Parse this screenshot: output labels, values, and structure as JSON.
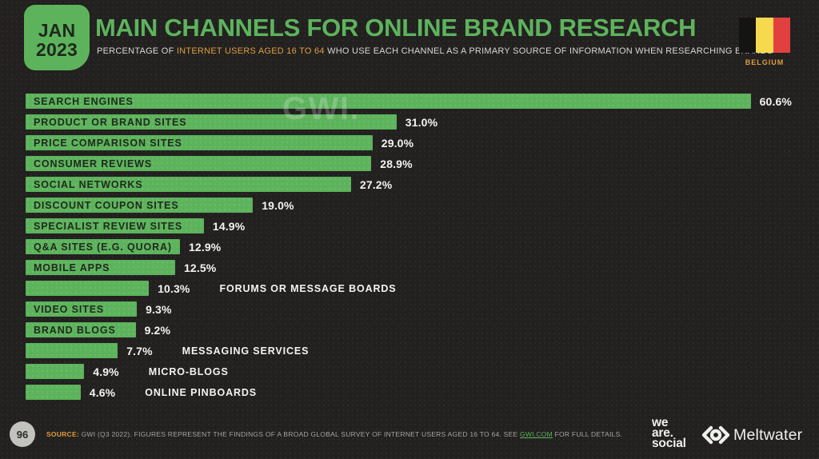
{
  "page": {
    "colors": {
      "background": "#222120",
      "green": "#5cb35c",
      "orange": "#dd9d3f",
      "bar_label_dark": "#202a1e",
      "white_text": "#f3f3f1"
    }
  },
  "header": {
    "date_badge": {
      "line1": "JAN",
      "line2": "2023"
    },
    "title": "MAIN CHANNELS FOR ONLINE BRAND RESEARCH",
    "subtitle_prefix": "PERCENTAGE OF ",
    "subtitle_highlight": "INTERNET USERS AGED 16 TO 64",
    "subtitle_suffix": " WHO USE EACH CHANNEL AS A PRIMARY SOURCE OF INFORMATION WHEN RESEARCHING BRANDS",
    "country": "BELGIUM",
    "flag_colors": [
      "#141413",
      "#f6d94c",
      "#e2403e"
    ]
  },
  "watermark": "GWI.",
  "chart_data": {
    "type": "bar",
    "orientation": "horizontal",
    "title": "Main channels for online brand research (Belgium, Jan 2023)",
    "unit": "%",
    "xlim": [
      0,
      62
    ],
    "grid": false,
    "legend": false,
    "categories": [
      "SEARCH ENGINES",
      "PRODUCT OR BRAND SITES",
      "PRICE COMPARISON SITES",
      "CONSUMER REVIEWS",
      "SOCIAL NETWORKS",
      "DISCOUNT COUPON SITES",
      "SPECIALIST REVIEW SITES",
      "Q&A SITES (E.G. QUORA)",
      "MOBILE APPS",
      "FORUMS OR MESSAGE BOARDS",
      "VIDEO SITES",
      "BRAND BLOGS",
      "MESSAGING SERVICES",
      "MICRO-BLOGS",
      "ONLINE PINBOARDS"
    ],
    "values": [
      60.6,
      31.0,
      29.0,
      28.9,
      27.2,
      19.0,
      14.9,
      12.9,
      12.5,
      10.3,
      9.3,
      9.2,
      7.7,
      4.9,
      4.6
    ],
    "value_labels": [
      "60.6%",
      "31.0%",
      "29.0%",
      "28.9%",
      "27.2%",
      "19.0%",
      "14.9%",
      "12.9%",
      "12.5%",
      "10.3%",
      "9.3%",
      "9.2%",
      "7.7%",
      "4.9%",
      "4.6%"
    ],
    "label_inside": [
      true,
      true,
      true,
      true,
      true,
      true,
      true,
      true,
      true,
      false,
      true,
      true,
      false,
      false,
      false
    ]
  },
  "footer": {
    "page_number": "96",
    "source_label": "SOURCE:",
    "source_text_1": " GWI (Q3 2022). FIGURES REPRESENT THE FINDINGS OF A BROAD GLOBAL SURVEY OF INTERNET USERS AGED 16 TO 64. SEE ",
    "source_link": "GWI.COM",
    "source_text_2": " FOR FULL DETAILS.",
    "logo_we_are_social": {
      "line1": "we",
      "line2": "are.",
      "line3": "social"
    },
    "logo_meltwater": "Meltwater"
  }
}
